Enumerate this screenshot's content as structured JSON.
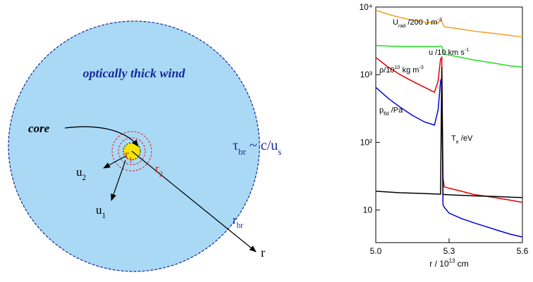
{
  "diagram": {
    "title": "optically thick wind",
    "core": "core",
    "r1": [
      {
        "text": "r"
      },
      {
        "text": "1",
        "sub": true
      }
    ],
    "r2": [
      {
        "text": "r"
      },
      {
        "text": "2",
        "sub": true
      }
    ],
    "u1": [
      {
        "text": "u"
      },
      {
        "text": "1",
        "sub": true
      }
    ],
    "u2": [
      {
        "text": "u"
      },
      {
        "text": "2",
        "sub": true
      }
    ],
    "tau": [
      {
        "text": "τ"
      },
      {
        "text": "br",
        "sub": true
      },
      {
        "text": " ~ c/u"
      },
      {
        "text": "s",
        "sub": true
      }
    ],
    "rbr": [
      {
        "text": "r"
      },
      {
        "text": "br",
        "sub": true
      }
    ],
    "r": "r"
  },
  "chart_data": {
    "type": "line",
    "xlabel": [
      {
        "text": "r / 10"
      },
      {
        "text": "13",
        "sup": true
      },
      {
        "text": " cm"
      }
    ],
    "log_y": true,
    "xlim": [
      5.0,
      5.6
    ],
    "xticks": [
      {
        "value": 5.0,
        "label": "5.0"
      },
      5.3,
      {
        "value": 5.6,
        "label": "5.6"
      }
    ],
    "ylim": [
      3.3,
      10000
    ],
    "yticks": [
      10,
      {
        "value": 100,
        "label": "10²"
      },
      {
        "value": 1000,
        "label": "10³"
      },
      {
        "value": 10000,
        "label": "10⁴"
      }
    ],
    "x": [
      5.0,
      5.05,
      5.1,
      5.15,
      5.2,
      5.24,
      5.255,
      5.265,
      5.27,
      5.275,
      5.28,
      5.3,
      5.35,
      5.4,
      5.45,
      5.5,
      5.55,
      5.6
    ],
    "series": [
      {
        "name": [
          {
            "text": "U"
          },
          {
            "text": "rad",
            "sub": true
          },
          {
            "text": " /200 J m"
          },
          {
            "text": "-3",
            "sup": true
          }
        ],
        "color": "#f0a020",
        "values": [
          9000,
          7800,
          7000,
          6400,
          6000,
          5800,
          5800,
          6300,
          6200,
          5600,
          5100,
          5000,
          4700,
          4400,
          4200,
          4000,
          3800,
          3600
        ]
      },
      {
        "name": [
          {
            "text": "u /10 km s"
          },
          {
            "text": "-1",
            "sup": true
          }
        ],
        "color": "#22dd22",
        "values": [
          2700,
          2650,
          2620,
          2600,
          2600,
          2600,
          2620,
          2650,
          2600,
          2300,
          2000,
          1950,
          1800,
          1650,
          1550,
          1450,
          1350,
          1300
        ]
      },
      {
        "name": [
          {
            "text": "ρ/10"
          },
          {
            "text": "10",
            "sup": true
          },
          {
            "text": " kg m"
          },
          {
            "text": "-3",
            "sup": true
          }
        ],
        "color": "#e00000",
        "values": [
          1800,
          1300,
          1000,
          800,
          650,
          550,
          800,
          1700,
          1800,
          30,
          22,
          21,
          19,
          17,
          16,
          15,
          14,
          13
        ]
      },
      {
        "name": [
          {
            "text": "p"
          },
          {
            "text": "fld",
            "sub": true
          },
          {
            "text": " /Pa"
          }
        ],
        "color": "#0000dd",
        "values": [
          650,
          450,
          330,
          250,
          200,
          180,
          300,
          800,
          900,
          12,
          11,
          9,
          7.5,
          6.5,
          5.7,
          5,
          4.4,
          4
        ]
      },
      {
        "name": [
          {
            "text": "T"
          },
          {
            "text": "e",
            "sub": true
          },
          {
            "text": " /eV"
          }
        ],
        "color": "#000000",
        "values": [
          19,
          18.5,
          18,
          17.8,
          17.5,
          17.3,
          17.2,
          17.2,
          1300,
          17,
          17,
          16.8,
          16.5,
          16.2,
          16,
          15.8,
          15.5,
          15.3
        ]
      }
    ]
  }
}
